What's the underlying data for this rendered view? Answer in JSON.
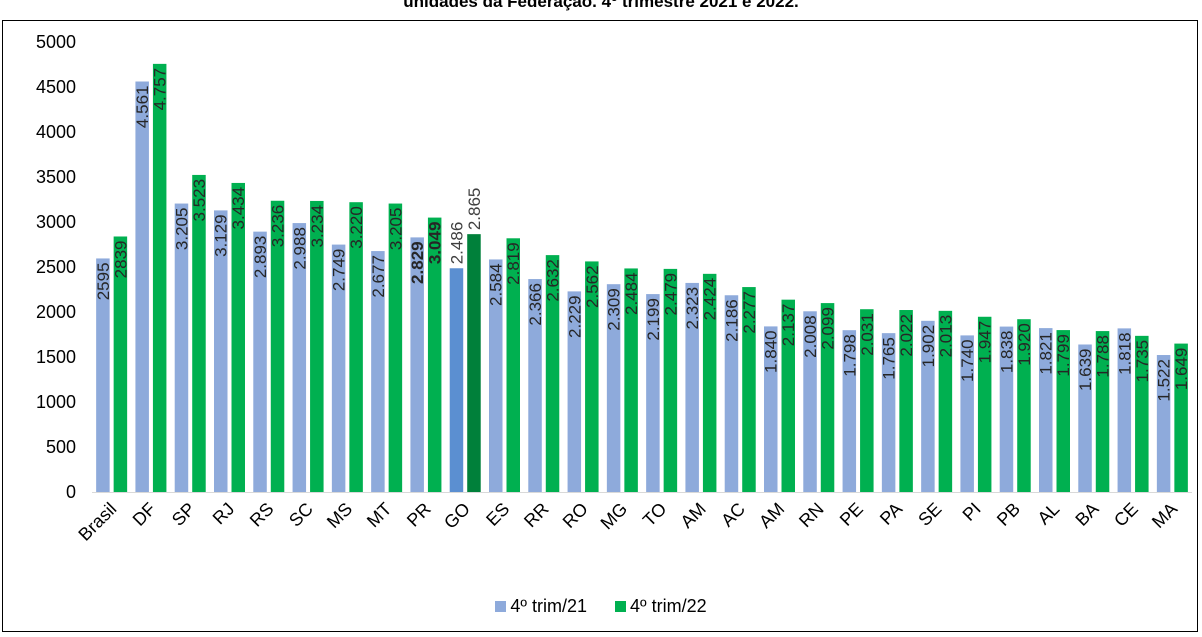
{
  "chart_data": {
    "type": "bar",
    "title": "unidades da Federação. 4º trimestre 2021 e 2022.",
    "categories": [
      "Brasil",
      "DF",
      "SP",
      "RJ",
      "RS",
      "SC",
      "MS",
      "MT",
      "PR",
      "GO",
      "ES",
      "RR",
      "RO",
      "MG",
      "TO",
      "AM",
      "AC",
      "AM",
      "RN",
      "PE",
      "PA",
      "SE",
      "PI",
      "PB",
      "AL",
      "BA",
      "CE",
      "MA"
    ],
    "series": [
      {
        "name": "4º trim/21",
        "color": "#8eaadb",
        "values": [
          2595,
          4561,
          3205,
          3129,
          2893,
          2988,
          2749,
          2677,
          2829,
          2486,
          2584,
          2366,
          2229,
          2309,
          2199,
          2323,
          2186,
          1840,
          2008,
          1798,
          1765,
          1902,
          1740,
          1838,
          1821,
          1639,
          1818,
          1522
        ],
        "labels": [
          "2595",
          "4.561",
          "3.205",
          "3.129",
          "2.893",
          "2.988",
          "2.749",
          "2.677",
          "2.829",
          "2.486",
          "2.584",
          "2.366",
          "2.229",
          "2.309",
          "2.199",
          "2.323",
          "2.186",
          "1.840",
          "2.008",
          "1.798",
          "1.765",
          "1.902",
          "1.740",
          "1.838",
          "1.821",
          "1.639",
          "1.818",
          "1.522"
        ]
      },
      {
        "name": "4º trim/22",
        "color": "#00b050",
        "values": [
          2839,
          4757,
          3523,
          3434,
          3236,
          3234,
          3220,
          3205,
          3049,
          2865,
          2819,
          2632,
          2562,
          2484,
          2479,
          2424,
          2277,
          2137,
          2099,
          2031,
          2022,
          2013,
          1947,
          1920,
          1799,
          1788,
          1735,
          1649
        ],
        "labels": [
          "2839",
          "4.757",
          "3.523",
          "3.434",
          "3.236",
          "3.234",
          "3.220",
          "3.205",
          "3.049",
          "2.865",
          "2.819",
          "2.632",
          "2.562",
          "2.484",
          "2.479",
          "2.424",
          "2.277",
          "2.137",
          "2.099",
          "2.031",
          "2.022",
          "2.013",
          "1.947",
          "1.920",
          "1.799",
          "1.788",
          "1.735",
          "1.649"
        ]
      }
    ],
    "highlight": {
      "category": "GO",
      "colors": [
        "#5b8fd1",
        "#00803a"
      ]
    },
    "ylim": [
      0,
      5000
    ],
    "yticks": [
      "0",
      "500",
      "1000",
      "1500",
      "2000",
      "2500",
      "3000",
      "3500",
      "4000",
      "4500",
      "5000"
    ],
    "legend_position": "bottom",
    "grid": false
  }
}
